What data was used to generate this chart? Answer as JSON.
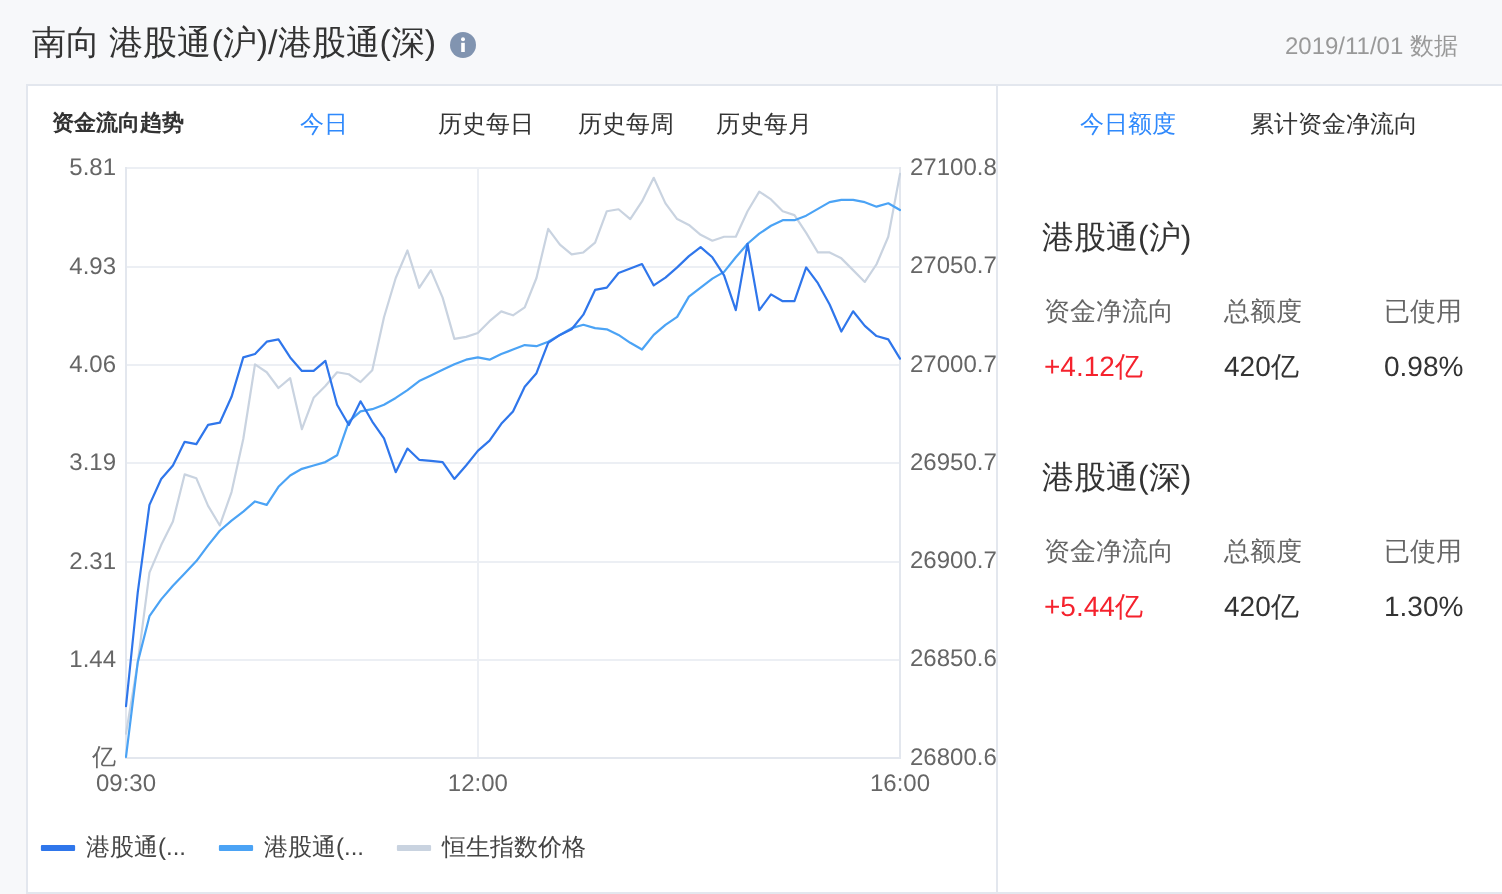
{
  "chart_data": [
    {
      "type": "line",
      "title": "南向 港股通(沪)/港股通(深)",
      "annotations": [
        "资金流向趋势",
        "今日",
        "历史每日",
        "历史每周",
        "历史每月"
      ],
      "categories": [
        "09:30",
        null,
        null,
        null,
        null,
        null,
        null,
        null,
        null,
        null,
        null,
        null,
        null,
        null,
        null,
        null,
        null,
        null,
        null,
        null,
        null,
        null,
        null,
        null,
        null,
        null,
        null,
        null,
        null,
        null,
        "12:00",
        null,
        null,
        null,
        null,
        null,
        null,
        null,
        null,
        null,
        null,
        null,
        null,
        null,
        null,
        null,
        null,
        null,
        null,
        null,
        null,
        null,
        null,
        null,
        null,
        null,
        null,
        null,
        null,
        null,
        null,
        null,
        null,
        null,
        null,
        null,
        "16:00"
      ],
      "series": [
        {
          "name": "港股通(...",
          "color": "#2f76eb",
          "values": [
            1.03,
            2.04,
            2.82,
            3.05,
            3.17,
            3.38,
            3.36,
            3.53,
            3.55,
            3.78,
            4.13,
            4.16,
            4.27,
            4.29,
            4.13,
            4.01,
            4.01,
            4.1,
            3.71,
            3.53,
            3.74,
            3.56,
            3.41,
            3.11,
            3.32,
            3.22,
            3.21,
            3.2,
            3.05,
            3.17,
            3.3,
            3.39,
            3.54,
            3.65,
            3.87,
            3.99,
            4.26,
            4.33,
            4.38,
            4.51,
            4.73,
            4.75,
            4.88,
            4.92,
            4.96,
            4.77,
            4.84,
            4.93,
            5.03,
            5.11,
            5.02,
            4.86,
            4.55,
            5.14,
            4.55,
            4.69,
            4.63,
            4.63,
            4.93,
            4.79,
            4.6,
            4.36,
            4.54,
            4.41,
            4.32,
            4.29,
            4.12
          ]
        },
        {
          "name": "港股通(...",
          "color": "#4ba3f5",
          "values": [
            0.58,
            1.42,
            1.83,
            1.98,
            2.1,
            2.21,
            2.32,
            2.46,
            2.59,
            2.68,
            2.76,
            2.85,
            2.82,
            2.98,
            3.08,
            3.14,
            3.17,
            3.2,
            3.26,
            3.56,
            3.65,
            3.67,
            3.71,
            3.77,
            3.84,
            3.92,
            3.97,
            4.02,
            4.07,
            4.11,
            4.13,
            4.11,
            4.16,
            4.2,
            4.24,
            4.23,
            4.27,
            4.33,
            4.39,
            4.42,
            4.39,
            4.38,
            4.33,
            4.26,
            4.2,
            4.33,
            4.42,
            4.49,
            4.67,
            4.75,
            4.83,
            4.89,
            5.02,
            5.14,
            5.23,
            5.3,
            5.35,
            5.35,
            5.39,
            5.45,
            5.51,
            5.53,
            5.53,
            5.51,
            5.47,
            5.5,
            5.44
          ]
        },
        {
          "name": "恒生指数价格",
          "color": "#c9d3e0",
          "axis": "y2",
          "values": [
            26813,
            26849,
            26895,
            26909,
            26921,
            26945,
            26943,
            26929,
            26919,
            26936,
            26963,
            27001,
            26997,
            26989,
            26994,
            26968,
            26984,
            26990,
            26997,
            26996,
            26992,
            26998,
            27025,
            27045,
            27059,
            27040,
            27049,
            27035,
            27014,
            27015,
            27017,
            27023,
            27028,
            27026,
            27030,
            27045,
            27070,
            27062,
            27057,
            27058,
            27063,
            27079,
            27080,
            27075,
            27084,
            27096,
            27083,
            27075,
            27072,
            27067,
            27064,
            27066,
            27066,
            27079,
            27089,
            27085,
            27079,
            27077,
            27068,
            27058,
            27058,
            27055,
            27049,
            27043,
            27052,
            27066,
            27098
          ]
        }
      ],
      "ylim": [
        0.57,
        5.81
      ],
      "yticks": [
        {
          "value": 0.57,
          "label": "亿"
        },
        1.44,
        2.31,
        3.19,
        4.06,
        4.93,
        5.81
      ],
      "y2lim": [
        26800.6,
        27100.8
      ],
      "y2ticks": [
        26800.6,
        26850.6,
        26900.7,
        26950.7,
        27000.7,
        27050.7,
        27100.8
      ],
      "grid": true,
      "legend": "bottom left",
      "marker": "none"
    },
    {
      "type": "other",
      "subtitle": "2019/11/01 数据",
      "annotations": [
        "今日额度",
        "累计资金净流向"
      ]
    },
    {
      "type": "other",
      "title": "港股通(沪)",
      "annotations": [
        "资金净流向",
        "总额度",
        "已使用",
        "+4.12亿",
        "420亿",
        "0.98%"
      ]
    },
    {
      "type": "other",
      "title": "港股通(深)",
      "annotations": [
        "资金净流向",
        "总额度",
        "已使用",
        "+5.44亿",
        "420亿",
        "1.30%"
      ]
    }
  ]
}
